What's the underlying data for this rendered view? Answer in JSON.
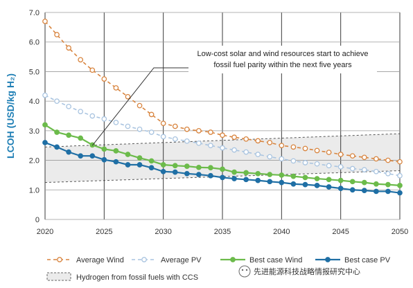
{
  "chart_data": {
    "type": "line",
    "ylabel": "LCOH (USD/kg H₂)",
    "ylim": [
      0,
      7
    ],
    "yticks": [
      "0",
      "1.0",
      "2.0",
      "3.0",
      "4.0",
      "5.0",
      "6.0",
      "7.0"
    ],
    "xlim": [
      2020,
      2050
    ],
    "xticks": [
      "2020",
      "2025",
      "2030",
      "2035",
      "2040",
      "2045",
      "2050"
    ],
    "grid": true,
    "legend_position": "bottom",
    "annotation": {
      "lines": [
        "Low-cost solar and wind resources start to achieve",
        "fossil fuel parity within the next five years"
      ],
      "points_to": {
        "x": 2024,
        "y": 2.5
      }
    },
    "band": {
      "name": "Hydrogen from fossil fuels with CCS",
      "x": [
        2020,
        2050
      ],
      "lower": [
        1.25,
        1.65
      ],
      "upper": [
        2.45,
        2.9
      ]
    },
    "series": [
      {
        "name": "Average Wind",
        "color": "#d8843e",
        "style": "dashed",
        "marker": "open",
        "x": [
          2020,
          2021,
          2022,
          2023,
          2024,
          2025,
          2026,
          2027,
          2028,
          2029,
          2030,
          2031,
          2032,
          2033,
          2034,
          2035,
          2036,
          2037,
          2038,
          2039,
          2040,
          2041,
          2042,
          2043,
          2044,
          2045,
          2046,
          2047,
          2048,
          2049,
          2050
        ],
        "y": [
          6.7,
          6.25,
          5.8,
          5.4,
          5.05,
          4.75,
          4.45,
          4.15,
          3.85,
          3.55,
          3.25,
          3.15,
          3.05,
          3.0,
          2.95,
          2.85,
          2.78,
          2.72,
          2.66,
          2.6,
          2.5,
          2.45,
          2.4,
          2.33,
          2.27,
          2.2,
          2.15,
          2.1,
          2.05,
          2.0,
          1.95
        ]
      },
      {
        "name": "Average PV",
        "color": "#a9c4e0",
        "style": "dashed",
        "marker": "open",
        "x": [
          2020,
          2021,
          2022,
          2023,
          2024,
          2025,
          2026,
          2027,
          2028,
          2029,
          2030,
          2031,
          2032,
          2033,
          2034,
          2035,
          2036,
          2037,
          2038,
          2039,
          2040,
          2041,
          2042,
          2043,
          2044,
          2045,
          2046,
          2047,
          2048,
          2049,
          2050
        ],
        "y": [
          4.2,
          4.0,
          3.82,
          3.65,
          3.5,
          3.4,
          3.28,
          3.15,
          3.05,
          2.95,
          2.8,
          2.72,
          2.65,
          2.58,
          2.5,
          2.42,
          2.35,
          2.28,
          2.2,
          2.12,
          2.05,
          1.98,
          1.92,
          1.88,
          1.82,
          1.78,
          1.72,
          1.68,
          1.62,
          1.55,
          1.48
        ]
      },
      {
        "name": "Best case Wind",
        "color": "#6cbb4b",
        "style": "solid",
        "marker": "filled",
        "x": [
          2020,
          2021,
          2022,
          2023,
          2024,
          2025,
          2026,
          2027,
          2028,
          2029,
          2030,
          2031,
          2032,
          2033,
          2034,
          2035,
          2036,
          2037,
          2038,
          2039,
          2040,
          2041,
          2042,
          2043,
          2044,
          2045,
          2046,
          2047,
          2048,
          2049,
          2050
        ],
        "y": [
          3.2,
          2.95,
          2.85,
          2.75,
          2.52,
          2.38,
          2.32,
          2.2,
          2.08,
          1.98,
          1.85,
          1.82,
          1.8,
          1.76,
          1.75,
          1.7,
          1.6,
          1.58,
          1.55,
          1.52,
          1.5,
          1.46,
          1.42,
          1.38,
          1.35,
          1.32,
          1.28,
          1.25,
          1.2,
          1.18,
          1.15
        ]
      },
      {
        "name": "Best case PV",
        "color": "#1f6fa5",
        "style": "solid",
        "marker": "filled",
        "x": [
          2020,
          2021,
          2022,
          2023,
          2024,
          2025,
          2026,
          2027,
          2028,
          2029,
          2030,
          2031,
          2032,
          2033,
          2034,
          2035,
          2036,
          2037,
          2038,
          2039,
          2040,
          2041,
          2042,
          2043,
          2044,
          2045,
          2046,
          2047,
          2048,
          2049,
          2050
        ],
        "y": [
          2.6,
          2.45,
          2.28,
          2.15,
          2.15,
          2.02,
          1.95,
          1.85,
          1.85,
          1.75,
          1.62,
          1.6,
          1.55,
          1.52,
          1.48,
          1.42,
          1.38,
          1.35,
          1.32,
          1.28,
          1.25,
          1.2,
          1.18,
          1.15,
          1.1,
          1.05,
          1.0,
          0.98,
          0.95,
          0.95,
          0.9
        ]
      }
    ]
  },
  "watermark": {
    "text": "先进能源科技战略情报研究中心"
  }
}
